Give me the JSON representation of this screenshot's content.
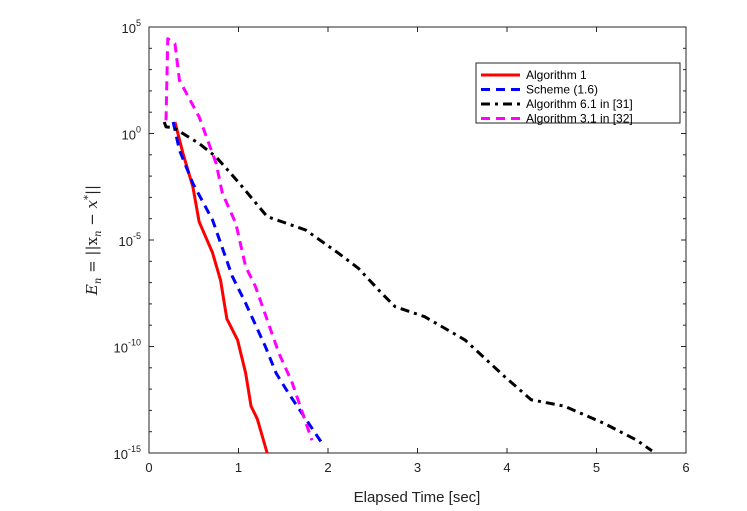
{
  "chart_data": {
    "type": "line",
    "title": "",
    "xlabel": "Elapsed Time [sec]",
    "ylabel_parts": {
      "lhs": "E",
      "sub": "n",
      "eq": " = ||x",
      "sub2": "n",
      "minus": " − x",
      "star": "*",
      "end": "||"
    },
    "xlim": [
      0,
      6
    ],
    "ylim_log10": [
      -15,
      5
    ],
    "yscale": "log",
    "x_ticks": [
      "0",
      "1",
      "2",
      "3",
      "4",
      "5",
      "6"
    ],
    "y_ticks": [
      {
        "base": "10",
        "exp": "5",
        "value": 5
      },
      {
        "base": "10",
        "exp": "0",
        "value": 0
      },
      {
        "base": "10",
        "exp": "-5",
        "value": -5
      },
      {
        "base": "10",
        "exp": "-10",
        "value": -10
      },
      {
        "base": "10",
        "exp": "-15",
        "value": -15
      }
    ],
    "legend_position": "top-right",
    "series": [
      {
        "name": "Algorithm 1",
        "color": "#ff0000",
        "dash": "solid",
        "x": [
          0.29,
          0.38,
          0.49,
          0.56,
          0.71,
          0.8,
          0.87,
          0.99,
          1.08,
          1.14,
          1.21,
          1.32
        ],
        "log10_y": [
          0.54,
          -0.94,
          -2.5,
          -4.14,
          -5.6,
          -6.9,
          -8.7,
          -9.7,
          -11.25,
          -12.8,
          -13.4,
          -15
        ]
      },
      {
        "name": "Scheme (1.6)",
        "color": "#0000ff",
        "dash": "dashed",
        "x": [
          0.27,
          0.34,
          0.49,
          0.71,
          0.93,
          1.08,
          1.3,
          1.42,
          1.56,
          1.92
        ],
        "log10_y": [
          0.54,
          -0.78,
          -2.34,
          -4.06,
          -6.7,
          -7.97,
          -10.0,
          -11.25,
          -12.2,
          -14.46
        ]
      },
      {
        "name": "Algorithm 6.1 in [31]",
        "color": "#000000",
        "dash": "dashdot",
        "x": [
          0.17,
          0.19,
          0.27,
          0.56,
          0.75,
          1.01,
          1.32,
          1.75,
          2.12,
          2.34,
          2.6,
          2.75,
          3.08,
          3.53,
          3.97,
          4.27,
          4.64,
          5.08,
          5.45,
          5.62
        ],
        "log10_y": [
          0.54,
          0.31,
          0.28,
          -0.47,
          -1.1,
          -2.34,
          -3.9,
          -4.53,
          -5.63,
          -6.33,
          -7.5,
          -8.13,
          -8.6,
          -9.69,
          -11.4,
          -12.5,
          -12.8,
          -13.6,
          -14.4,
          -14.9
        ]
      },
      {
        "name": "Algorithm 3.1 in [32]",
        "color": "#ff00ff",
        "dash": "dashed",
        "x": [
          0.19,
          0.21,
          0.29,
          0.34,
          0.56,
          0.75,
          0.82,
          0.97,
          1.08,
          1.19,
          1.45,
          1.6,
          1.82
        ],
        "log10_y": [
          0.62,
          4.45,
          4.22,
          2.5,
          0.78,
          -1.4,
          -2.81,
          -4.22,
          -6.25,
          -7.19,
          -10.3,
          -11.7,
          -14.4
        ]
      }
    ]
  }
}
